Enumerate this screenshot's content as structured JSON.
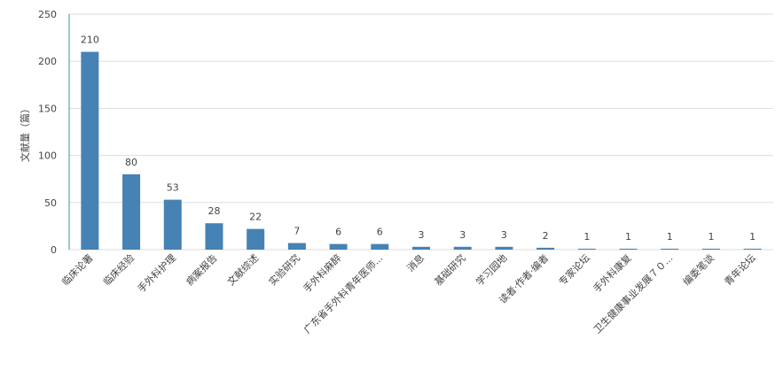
{
  "chart_data": {
    "type": "bar",
    "y_label": "文献量（篇）",
    "categories": [
      "临床论著",
      "临床经验",
      "手外科护理",
      "病案报告",
      "文献综述",
      "实验研究",
      "手外科麻醉",
      "广东省手外科青年医师...",
      "消息",
      "基础研究",
      "学习园地",
      "读者·作者·编者",
      "专家论坛",
      "手外科康复",
      "卫生健康事业发展７０...",
      "编委笔谈",
      "青年论坛"
    ],
    "values": [
      210,
      80,
      53,
      28,
      22,
      7,
      6,
      6,
      3,
      3,
      3,
      2,
      1,
      1,
      1,
      1,
      1
    ],
    "color": "#4682b4",
    "ylim": [
      0,
      250
    ],
    "yticks": [
      0,
      50,
      100,
      150,
      200,
      250
    ],
    "grid": true
  }
}
